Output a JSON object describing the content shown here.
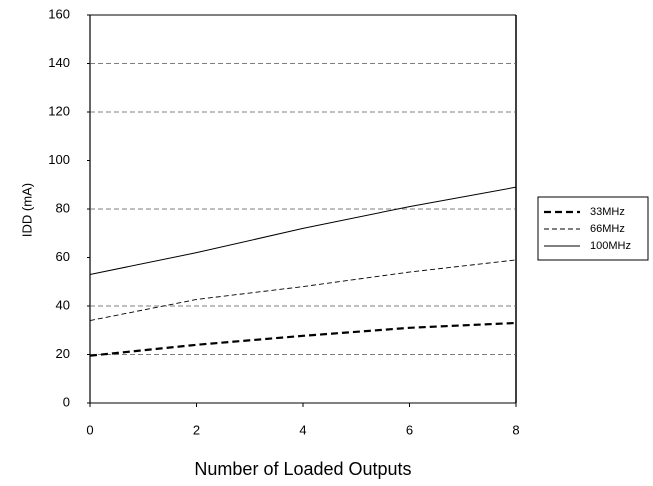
{
  "chart_data": {
    "type": "line",
    "xlabel": "Number of Loaded Outputs",
    "ylabel": "IDD (mA)",
    "x": [
      0,
      2,
      4,
      6,
      8
    ],
    "series": [
      {
        "name": "33MHz",
        "color": "#000000",
        "style": "thick-dashed",
        "values": [
          19.5,
          24,
          27.7,
          31,
          33
        ]
      },
      {
        "name": "66MHz",
        "color": "#000000",
        "style": "dashed",
        "values": [
          34,
          42.7,
          48,
          54,
          59
        ]
      },
      {
        "name": "100MHz",
        "color": "#000000",
        "style": "solid",
        "values": [
          53,
          62,
          72,
          81,
          89
        ]
      }
    ],
    "xlim": [
      0,
      8
    ],
    "xticks": [
      0,
      2,
      4,
      6,
      8
    ],
    "ylim": [
      0,
      160
    ],
    "yticks": [
      0,
      20,
      40,
      60,
      80,
      100,
      120,
      140,
      160
    ],
    "grid_lines": [
      20,
      40,
      80,
      120,
      140
    ],
    "legend": "right"
  }
}
